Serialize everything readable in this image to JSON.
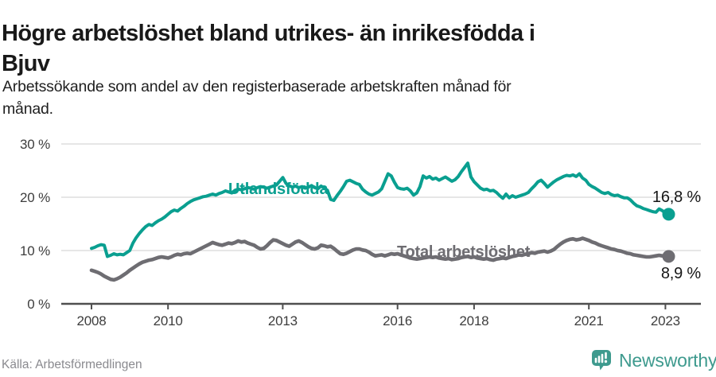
{
  "header": {
    "title_lines": [
      "Högre arbetslöshet bland utrikes- än inrikesfödda i",
      "Bjuv"
    ],
    "subtitle_lines": [
      "Arbetssökande som andel av den registerbaserade arbetskraften månad för",
      "månad."
    ]
  },
  "chart_data": {
    "type": "line",
    "title": "Högre arbetslöshet bland utrikes- än inrikesfödda i Bjuv",
    "subtitle": "Arbetssökande som andel av den registerbaserade arbetskraften månad för månad.",
    "unit": "%",
    "x_interval": "monthly",
    "x_start": "2008-01",
    "x_end": "2023-02",
    "x_tick_labels": [
      "2008",
      "2010",
      "2013",
      "2016",
      "2018",
      "2021",
      "2023"
    ],
    "y_tick_labels": [
      "30 %",
      "20 %",
      "10 %",
      "0 %"
    ],
    "y_tick_values": [
      30,
      20,
      10,
      0
    ],
    "ylim": [
      0,
      30
    ],
    "grid": "horizontal",
    "legend_position": "inline-on-line",
    "series": [
      {
        "key": "utlandsfodda",
        "name": "Utlandsfödda",
        "color": "#0a9f90",
        "end_label": "16,8 %",
        "end_value": 16.8,
        "values": [
          10.4,
          10.6,
          10.9,
          11.1,
          11.0,
          8.9,
          9.1,
          9.4,
          9.2,
          9.3,
          9.2,
          9.6,
          10.0,
          11.4,
          12.4,
          13.2,
          13.9,
          14.5,
          14.9,
          14.7,
          15.2,
          15.6,
          15.9,
          16.3,
          16.8,
          17.3,
          17.6,
          17.4,
          17.9,
          18.3,
          18.8,
          19.2,
          19.5,
          19.7,
          19.9,
          20.1,
          20.2,
          20.4,
          20.6,
          20.4,
          20.7,
          20.9,
          21.2,
          21.0,
          20.8,
          21.3,
          21.5,
          21.4,
          21.6,
          21.8,
          21.7,
          21.5,
          21.8,
          22.0,
          21.9,
          21.7,
          21.9,
          22.1,
          22.3,
          23.0,
          23.7,
          22.6,
          22.2,
          21.9,
          22.1,
          21.8,
          22.0,
          21.7,
          21.9,
          22.2,
          21.8,
          21.6,
          22.1,
          21.7,
          21.3,
          19.6,
          19.4,
          20.3,
          21.1,
          22.0,
          23.0,
          23.2,
          22.9,
          22.6,
          22.4,
          21.5,
          21.0,
          20.6,
          20.4,
          20.7,
          21.0,
          21.6,
          23.0,
          24.4,
          24.0,
          22.8,
          21.8,
          21.6,
          21.5,
          21.7,
          21.2,
          20.4,
          20.8,
          22.0,
          24.0,
          23.6,
          23.9,
          23.4,
          23.6,
          23.2,
          23.5,
          23.8,
          23.4,
          23.0,
          23.3,
          23.9,
          24.8,
          25.6,
          26.4,
          23.8,
          22.9,
          22.3,
          21.7,
          21.4,
          21.5,
          21.2,
          21.3,
          20.9,
          20.3,
          19.8,
          20.6,
          19.9,
          20.3,
          20.0,
          20.2,
          20.4,
          20.6,
          20.9,
          21.6,
          22.2,
          22.9,
          23.2,
          22.6,
          21.9,
          22.4,
          22.9,
          23.3,
          23.6,
          23.9,
          24.1,
          24.0,
          24.2,
          23.9,
          24.4,
          23.6,
          23.2,
          22.4,
          22.0,
          21.7,
          21.3,
          20.9,
          20.7,
          20.9,
          20.5,
          20.3,
          20.4,
          20.1,
          19.9,
          19.9,
          19.5,
          18.9,
          18.4,
          18.2,
          17.9,
          17.7,
          17.5,
          17.3,
          17.2,
          17.8,
          17.5,
          17.0,
          16.8
        ]
      },
      {
        "key": "total",
        "name": "Total arbetslöshet",
        "color": "#6e6d72",
        "end_label": "8,9 %",
        "end_value": 8.9,
        "values": [
          6.3,
          6.1,
          5.9,
          5.6,
          5.2,
          4.9,
          4.6,
          4.5,
          4.7,
          5.0,
          5.4,
          5.8,
          6.3,
          6.7,
          7.1,
          7.5,
          7.8,
          8.0,
          8.2,
          8.3,
          8.5,
          8.7,
          8.8,
          8.7,
          8.6,
          8.8,
          9.1,
          9.3,
          9.2,
          9.4,
          9.5,
          9.4,
          9.7,
          10.0,
          10.3,
          10.6,
          10.9,
          11.2,
          11.5,
          11.3,
          11.1,
          11.0,
          11.2,
          11.4,
          11.3,
          11.5,
          11.8,
          11.6,
          11.7,
          11.4,
          11.2,
          11.0,
          10.6,
          10.3,
          10.4,
          10.9,
          11.5,
          12.0,
          11.9,
          11.6,
          11.3,
          11.0,
          10.8,
          11.2,
          11.6,
          11.8,
          11.5,
          11.1,
          10.7,
          10.4,
          10.3,
          10.5,
          11.0,
          10.9,
          10.7,
          10.8,
          10.4,
          9.9,
          9.4,
          9.3,
          9.5,
          9.8,
          10.1,
          10.3,
          10.3,
          10.1,
          10.0,
          9.7,
          9.3,
          9.0,
          9.1,
          9.2,
          9.0,
          9.2,
          9.4,
          9.3,
          9.4,
          9.2,
          9.0,
          8.8,
          8.6,
          8.5,
          8.4,
          8.5,
          8.6,
          8.7,
          8.8,
          8.7,
          8.8,
          8.6,
          8.5,
          8.4,
          8.5,
          8.3,
          8.4,
          8.5,
          8.7,
          8.8,
          8.9,
          8.7,
          8.8,
          8.6,
          8.5,
          8.4,
          8.5,
          8.3,
          8.2,
          8.4,
          8.5,
          8.6,
          8.5,
          8.7,
          8.9,
          9.0,
          9.2,
          9.1,
          9.3,
          9.4,
          9.6,
          9.5,
          9.7,
          9.8,
          9.9,
          9.7,
          9.9,
          10.2,
          10.7,
          11.2,
          11.6,
          11.9,
          12.1,
          12.2,
          12.0,
          12.1,
          12.3,
          12.1,
          11.9,
          11.6,
          11.4,
          11.1,
          10.9,
          10.7,
          10.5,
          10.3,
          10.2,
          10.0,
          9.9,
          9.7,
          9.5,
          9.4,
          9.2,
          9.1,
          9.0,
          8.9,
          8.8,
          8.8,
          8.9,
          9.0,
          9.1,
          9.0,
          9.0,
          8.9
        ]
      }
    ]
  },
  "footer": {
    "source": "Källa: Arbetsförmedlingen",
    "logo_text": "Newsworthy"
  },
  "colors": {
    "accent_teal": "#0a9f90",
    "series_gray": "#6e6d72",
    "logo_teal": "#3e9a8e",
    "gridline": "#d8d8d8",
    "axis": "#4f4f4f"
  }
}
